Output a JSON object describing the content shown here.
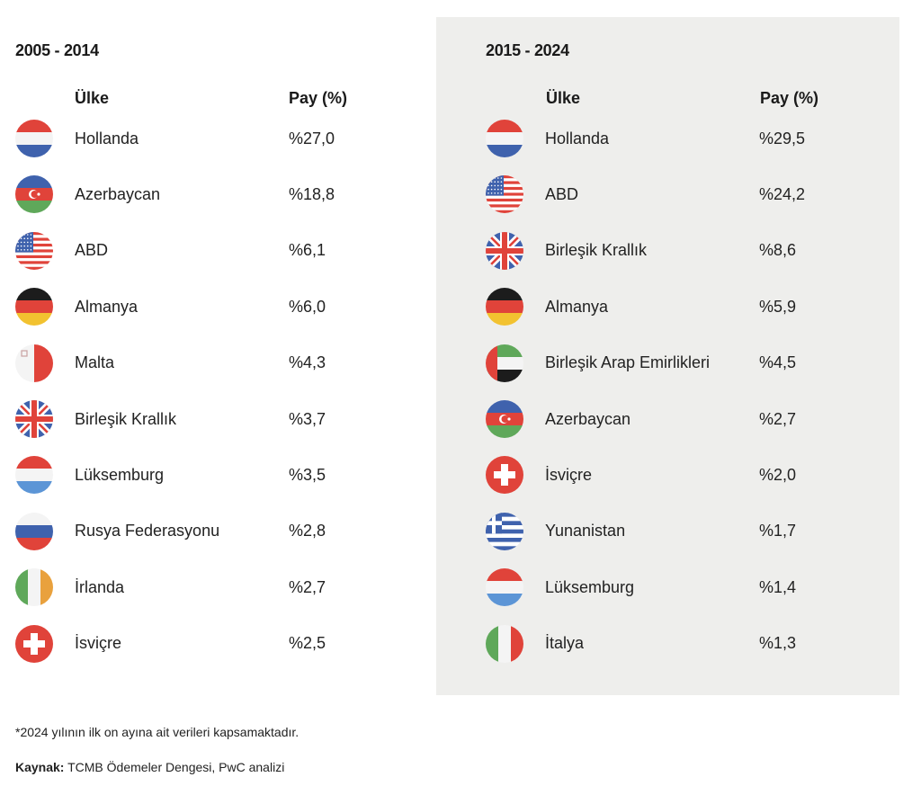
{
  "left": {
    "period": "2005 - 2014",
    "header_country": "Ülke",
    "header_share": "Pay (%)",
    "rows": [
      {
        "flag": "netherlands-flag",
        "country": "Hollanda",
        "share": "%27,0"
      },
      {
        "flag": "azerbaijan-flag",
        "country": "Azerbaycan",
        "share": "%18,8"
      },
      {
        "flag": "usa-flag",
        "country": "ABD",
        "share": "%6,1"
      },
      {
        "flag": "germany-flag",
        "country": "Almanya",
        "share": "%6,0"
      },
      {
        "flag": "malta-flag",
        "country": "Malta",
        "share": "%4,3"
      },
      {
        "flag": "uk-flag",
        "country": "Birleşik Krallık",
        "share": "%3,7"
      },
      {
        "flag": "luxembourg-flag",
        "country": "Lüksemburg",
        "share": "%3,5"
      },
      {
        "flag": "russia-flag",
        "country": "Rusya Federasyonu",
        "share": "%2,8"
      },
      {
        "flag": "ireland-flag",
        "country": "İrlanda",
        "share": "%2,7"
      },
      {
        "flag": "switzerland-flag",
        "country": "İsviçre",
        "share": "%2,5"
      }
    ]
  },
  "right": {
    "period": "2015 - 2024",
    "header_country": "Ülke",
    "header_share": "Pay (%)",
    "rows": [
      {
        "flag": "netherlands-flag",
        "country": "Hollanda",
        "share": "%29,5"
      },
      {
        "flag": "usa-flag",
        "country": "ABD",
        "share": "%24,2"
      },
      {
        "flag": "uk-flag",
        "country": "Birleşik Krallık",
        "share": "%8,6"
      },
      {
        "flag": "germany-flag",
        "country": "Almanya",
        "share": "%5,9"
      },
      {
        "flag": "uae-flag",
        "country": "Birleşik Arap Emirlikleri",
        "share": "%4,5"
      },
      {
        "flag": "azerbaijan-flag",
        "country": "Azerbaycan",
        "share": "%2,7"
      },
      {
        "flag": "switzerland-flag",
        "country": "İsviçre",
        "share": "%2,0"
      },
      {
        "flag": "greece-flag",
        "country": "Yunanistan",
        "share": "%1,7"
      },
      {
        "flag": "luxembourg-flag",
        "country": "Lüksemburg",
        "share": "%1,4"
      },
      {
        "flag": "italy-flag",
        "country": "İtalya",
        "share": "%1,3"
      }
    ]
  },
  "footnote": "*2024 yılının ilk on ayına ait verileri kapsamaktadır.",
  "source_label": "Kaynak:",
  "source_text": " TCMB Ödemeler Dengesi, PwC analizi",
  "colors": {
    "panel_gray": "#eeeeec",
    "red": "#e0433a",
    "blue": "#3f62ad",
    "green": "#5fa85a",
    "orange": "#e9a13d",
    "light_blue": "#5c95d6"
  }
}
